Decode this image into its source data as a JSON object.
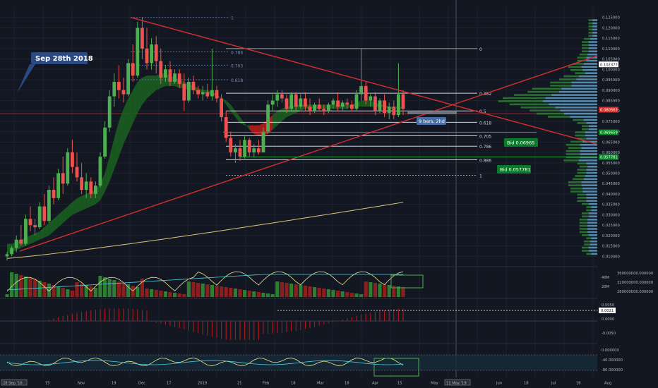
{
  "chart_data": {
    "type": "candlestick",
    "annotation": "Sep 28th 2018",
    "price_axis": {
      "min": 0.005,
      "max": 0.13,
      "ticks": [
        "0.125000",
        "0.120000",
        "0.115000",
        "0.110000",
        "0.105000",
        "0.100000",
        "0.095000",
        "0.090000",
        "0.085000",
        "0.080000",
        "0.075000",
        "0.070000",
        "0.065000",
        "0.060000",
        "0.055000",
        "0.050000",
        "0.045000",
        "0.040000",
        "0.035000",
        "0.030000",
        "0.025000",
        "0.020000",
        "0.015000",
        "0.010000"
      ],
      "current_label": "0.080565",
      "labels": [
        {
          "text": "0.102377",
          "value": 0.1024,
          "color": "#ffffff"
        },
        {
          "text": "0.069659",
          "value": 0.0697,
          "color": "#0b8a2a"
        },
        {
          "text": "0.057781",
          "value": 0.0578,
          "color": "#0b8a2a"
        }
      ]
    },
    "time_axis": {
      "ticks": [
        "28 Sep '18",
        "15",
        "Nov",
        "19",
        "Dec",
        "17",
        "2019",
        "21",
        "Feb",
        "18",
        "Mar",
        "18",
        "Apr",
        "15",
        "May",
        "11 May '19",
        "Jun",
        "18",
        "Jul",
        "16",
        "Aug"
      ]
    },
    "candles": [
      [
        0.01,
        0.012,
        0.008,
        0.011
      ],
      [
        0.011,
        0.015,
        0.01,
        0.014
      ],
      [
        0.014,
        0.02,
        0.012,
        0.018
      ],
      [
        0.018,
        0.025,
        0.015,
        0.016
      ],
      [
        0.016,
        0.03,
        0.015,
        0.028
      ],
      [
        0.028,
        0.034,
        0.022,
        0.025
      ],
      [
        0.025,
        0.028,
        0.02,
        0.024
      ],
      [
        0.024,
        0.036,
        0.023,
        0.034
      ],
      [
        0.034,
        0.04,
        0.025,
        0.027
      ],
      [
        0.027,
        0.044,
        0.026,
        0.042
      ],
      [
        0.042,
        0.048,
        0.035,
        0.038
      ],
      [
        0.038,
        0.052,
        0.037,
        0.05
      ],
      [
        0.05,
        0.058,
        0.04,
        0.045
      ],
      [
        0.045,
        0.062,
        0.044,
        0.06
      ],
      [
        0.06,
        0.066,
        0.05,
        0.053
      ],
      [
        0.053,
        0.06,
        0.046,
        0.048
      ],
      [
        0.048,
        0.055,
        0.04,
        0.042
      ],
      [
        0.042,
        0.05,
        0.038,
        0.046
      ],
      [
        0.046,
        0.048,
        0.038,
        0.04
      ],
      [
        0.04,
        0.046,
        0.038,
        0.044
      ],
      [
        0.044,
        0.06,
        0.043,
        0.058
      ],
      [
        0.058,
        0.075,
        0.057,
        0.072
      ],
      [
        0.072,
        0.09,
        0.07,
        0.087
      ],
      [
        0.087,
        0.098,
        0.082,
        0.094
      ],
      [
        0.094,
        0.102,
        0.086,
        0.09
      ],
      [
        0.09,
        0.096,
        0.084,
        0.088
      ],
      [
        0.088,
        0.105,
        0.087,
        0.103
      ],
      [
        0.103,
        0.112,
        0.094,
        0.097
      ],
      [
        0.097,
        0.123,
        0.096,
        0.12
      ],
      [
        0.12,
        0.125,
        0.105,
        0.11
      ],
      [
        0.11,
        0.12,
        0.1,
        0.103
      ],
      [
        0.103,
        0.115,
        0.1,
        0.112
      ],
      [
        0.112,
        0.116,
        0.098,
        0.104
      ],
      [
        0.104,
        0.11,
        0.093,
        0.096
      ],
      [
        0.096,
        0.102,
        0.094,
        0.1
      ],
      [
        0.1,
        0.104,
        0.092,
        0.094
      ],
      [
        0.094,
        0.1,
        0.093,
        0.098
      ],
      [
        0.098,
        0.1,
        0.091,
        0.093
      ],
      [
        0.093,
        0.098,
        0.08,
        0.085
      ],
      [
        0.085,
        0.096,
        0.084,
        0.094
      ],
      [
        0.094,
        0.097,
        0.088,
        0.09
      ],
      [
        0.09,
        0.092,
        0.086,
        0.088
      ],
      [
        0.088,
        0.092,
        0.085,
        0.089
      ],
      [
        0.089,
        0.093,
        0.086,
        0.087
      ],
      [
        0.087,
        0.11,
        0.085,
        0.09
      ],
      [
        0.09,
        0.092,
        0.084,
        0.086
      ],
      [
        0.086,
        0.088,
        0.075,
        0.077
      ],
      [
        0.077,
        0.08,
        0.065,
        0.067
      ],
      [
        0.067,
        0.07,
        0.058,
        0.06
      ],
      [
        0.06,
        0.064,
        0.055,
        0.062
      ],
      [
        0.062,
        0.066,
        0.056,
        0.058
      ],
      [
        0.058,
        0.068,
        0.057,
        0.066
      ],
      [
        0.066,
        0.067,
        0.058,
        0.06
      ],
      [
        0.06,
        0.064,
        0.058,
        0.062
      ],
      [
        0.062,
        0.066,
        0.059,
        0.06
      ],
      [
        0.06,
        0.072,
        0.06,
        0.07
      ],
      [
        0.07,
        0.085,
        0.069,
        0.083
      ],
      [
        0.083,
        0.088,
        0.08,
        0.085
      ],
      [
        0.085,
        0.09,
        0.082,
        0.088
      ],
      [
        0.088,
        0.09,
        0.084,
        0.086
      ],
      [
        0.086,
        0.088,
        0.079,
        0.081
      ],
      [
        0.081,
        0.089,
        0.08,
        0.088
      ],
      [
        0.088,
        0.089,
        0.08,
        0.082
      ],
      [
        0.082,
        0.088,
        0.081,
        0.086
      ],
      [
        0.086,
        0.089,
        0.08,
        0.082
      ],
      [
        0.082,
        0.086,
        0.078,
        0.08
      ],
      [
        0.08,
        0.084,
        0.079,
        0.083
      ],
      [
        0.083,
        0.086,
        0.08,
        0.081
      ],
      [
        0.081,
        0.083,
        0.078,
        0.08
      ],
      [
        0.08,
        0.084,
        0.079,
        0.083
      ],
      [
        0.083,
        0.086,
        0.081,
        0.085
      ],
      [
        0.085,
        0.089,
        0.08,
        0.082
      ],
      [
        0.082,
        0.085,
        0.08,
        0.084
      ],
      [
        0.084,
        0.086,
        0.081,
        0.083
      ],
      [
        0.083,
        0.085,
        0.08,
        0.081
      ],
      [
        0.081,
        0.09,
        0.08,
        0.088
      ],
      [
        0.088,
        0.11,
        0.085,
        0.092
      ],
      [
        0.092,
        0.094,
        0.083,
        0.085
      ],
      [
        0.085,
        0.088,
        0.082,
        0.087
      ],
      [
        0.087,
        0.089,
        0.078,
        0.08
      ],
      [
        0.08,
        0.086,
        0.079,
        0.085
      ],
      [
        0.085,
        0.088,
        0.077,
        0.079
      ],
      [
        0.079,
        0.084,
        0.076,
        0.082
      ],
      [
        0.082,
        0.085,
        0.076,
        0.078
      ],
      [
        0.078,
        0.103,
        0.077,
        0.088
      ],
      [
        0.088,
        0.09,
        0.078,
        0.081
      ]
    ],
    "ribbon_upper": [
      0.016,
      0.016,
      0.017,
      0.018,
      0.019,
      0.02,
      0.021,
      0.022,
      0.024,
      0.026,
      0.028,
      0.03,
      0.032,
      0.034,
      0.036,
      0.038,
      0.039,
      0.04,
      0.041,
      0.042,
      0.045,
      0.05,
      0.058,
      0.067,
      0.075,
      0.081,
      0.086,
      0.09,
      0.094,
      0.096,
      0.097,
      0.097,
      0.097,
      0.098,
      0.098,
      0.097,
      0.096,
      0.095,
      0.094,
      0.093,
      0.092,
      0.091,
      0.09,
      0.09,
      0.089,
      0.088,
      0.086,
      0.083,
      0.08,
      0.077,
      0.074,
      0.073,
      0.073,
      0.073,
      0.073,
      0.074,
      0.076,
      0.078,
      0.08,
      0.081,
      0.082,
      0.082,
      0.083,
      0.083,
      0.083,
      0.083,
      0.083,
      0.083,
      0.083,
      0.083,
      0.083,
      0.083,
      0.083,
      0.083,
      0.083,
      0.084,
      0.085,
      0.085,
      0.085,
      0.084,
      0.083,
      0.083,
      0.082,
      0.082,
      0.082,
      0.082
    ],
    "ribbon_lower": [
      0.011,
      0.012,
      0.013,
      0.014,
      0.015,
      0.016,
      0.017,
      0.018,
      0.019,
      0.02,
      0.022,
      0.024,
      0.026,
      0.028,
      0.03,
      0.031,
      0.032,
      0.033,
      0.034,
      0.035,
      0.037,
      0.041,
      0.046,
      0.052,
      0.058,
      0.064,
      0.069,
      0.074,
      0.079,
      0.083,
      0.086,
      0.088,
      0.09,
      0.091,
      0.092,
      0.092,
      0.092,
      0.091,
      0.091,
      0.09,
      0.09,
      0.089,
      0.089,
      0.088,
      0.088,
      0.087,
      0.086,
      0.085,
      0.083,
      0.08,
      0.077,
      0.074,
      0.071,
      0.069,
      0.068,
      0.068,
      0.069,
      0.071,
      0.073,
      0.075,
      0.077,
      0.078,
      0.079,
      0.08,
      0.081,
      0.081,
      0.081,
      0.081,
      0.081,
      0.081,
      0.081,
      0.081,
      0.081,
      0.081,
      0.082,
      0.082,
      0.082,
      0.082,
      0.082,
      0.082,
      0.082,
      0.082,
      0.081,
      0.081,
      0.081,
      0.081
    ],
    "fib_levels": [
      {
        "label": "1",
        "value": 0.125
      },
      {
        "label": "0.786",
        "value": 0.1085
      },
      {
        "label": "0.703",
        "value": 0.102
      },
      {
        "label": "0.618",
        "value": 0.095
      },
      {
        "label": "0",
        "value": 0.11
      },
      {
        "label": "0.382",
        "value": 0.0885
      },
      {
        "label": "0.5",
        "value": 0.08
      },
      {
        "label": "0.618",
        "value": 0.0745
      },
      {
        "label": "0.705",
        "value": 0.068
      },
      {
        "label": "0.786",
        "value": 0.063
      },
      {
        "label": "0.886",
        "value": 0.0565
      },
      {
        "label": "1",
        "value": 0.049
      }
    ],
    "trendline_annotations": [
      {
        "text": "Bid 0.06965",
        "value": 0.0697
      },
      {
        "text": "Bid 0.057781",
        "value": 0.0578
      }
    ],
    "bars_annotation": "9 bars, 2hd",
    "volume_axis": {
      "ticks": [
        "40M",
        "20M"
      ],
      "right_ticks": [
        "360000000.000000",
        "320000000.000000",
        "280000000.000000"
      ]
    },
    "oscillator_axis": {
      "ticks": [
        "0.0050",
        "0.0000",
        "-0.0050"
      ],
      "label": "0.0021"
    },
    "rsi_axis": {
      "ticks": [
        "0.000000",
        "-40.000000",
        "-80.000000"
      ]
    }
  }
}
